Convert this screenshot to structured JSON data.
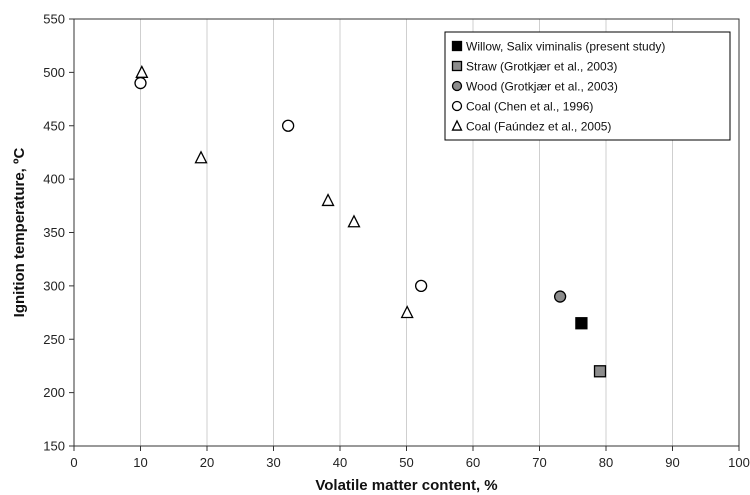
{
  "chart_data": {
    "type": "scatter",
    "title": "",
    "xlabel": "Volatile matter content, %",
    "ylabel": "Ignition temperature, ºC",
    "xlim": [
      0,
      100
    ],
    "ylim": [
      150,
      550
    ],
    "xticks": [
      0,
      10,
      20,
      30,
      40,
      50,
      60,
      70,
      80,
      90,
      100
    ],
    "yticks": [
      150,
      200,
      250,
      300,
      350,
      400,
      450,
      500,
      550
    ],
    "grid": "vertical",
    "legend_position": "top-right",
    "series": [
      {
        "name": "Willow, Salix viminalis (present study)",
        "marker": "square",
        "fill": "#000000",
        "points": [
          {
            "x": 76.3,
            "y": 265
          }
        ]
      },
      {
        "name": "Straw (Grotkjær et al., 2003)",
        "marker": "square",
        "fill": "#8c8c8c",
        "points": [
          {
            "x": 79.1,
            "y": 220
          }
        ]
      },
      {
        "name": "Wood (Grotkjær et al., 2003)",
        "marker": "circle",
        "fill": "#8c8c8c",
        "points": [
          {
            "x": 73.1,
            "y": 290
          }
        ]
      },
      {
        "name": "Coal (Chen et al., 1996)",
        "marker": "circle",
        "fill": "#ffffff",
        "points": [
          {
            "x": 10,
            "y": 490
          },
          {
            "x": 32.2,
            "y": 450
          },
          {
            "x": 52.2,
            "y": 300
          }
        ]
      },
      {
        "name": "Coal (Faúndez et al., 2005)",
        "marker": "triangle",
        "fill": "#ffffff",
        "points": [
          {
            "x": 10.2,
            "y": 500
          },
          {
            "x": 19.1,
            "y": 420
          },
          {
            "x": 38.2,
            "y": 380
          },
          {
            "x": 42.1,
            "y": 360
          },
          {
            "x": 50.1,
            "y": 275
          }
        ]
      }
    ]
  }
}
